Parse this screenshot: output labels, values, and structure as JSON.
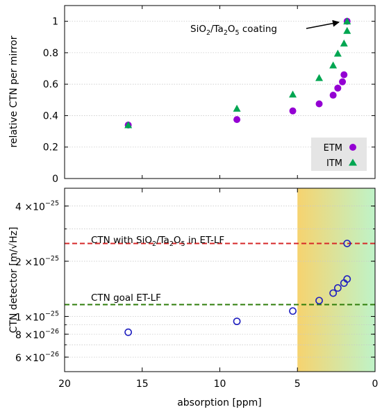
{
  "chart_data": [
    {
      "type": "scatter",
      "ylabel": "relative CTN per mirror",
      "xlim": [
        20,
        0
      ],
      "ylim": [
        0,
        1.1
      ],
      "y_ticks": [
        "0",
        "0.2",
        "0.4",
        "0.6",
        "0.8",
        "1"
      ],
      "y_tick_values": [
        0,
        0.2,
        0.4,
        0.6,
        0.8,
        1
      ],
      "grid": true,
      "legend_position": "bottom-right",
      "series": [
        {
          "name": "ETM",
          "color": "#9400d3",
          "marker": "circle",
          "x": [
            15.9,
            8.9,
            5.3,
            3.6,
            2.7,
            2.4,
            2.1,
            2.0,
            1.8
          ],
          "y": [
            0.34,
            0.375,
            0.43,
            0.475,
            0.53,
            0.575,
            0.615,
            0.66,
            1.0
          ]
        },
        {
          "name": "ITM",
          "color": "#00a651",
          "marker": "triangle",
          "x": [
            15.9,
            8.9,
            5.3,
            3.6,
            2.7,
            2.4,
            2.0,
            1.8,
            1.8
          ],
          "y": [
            0.34,
            0.445,
            0.535,
            0.64,
            0.72,
            0.795,
            0.86,
            0.94,
            1.0
          ]
        }
      ],
      "annotation": {
        "text_main": "SiO",
        "sub1": "2",
        "text_mid": "/Ta",
        "sub2": "2",
        "text_o": "O",
        "sub3": "5",
        "text_end": " coating"
      }
    },
    {
      "type": "scatter",
      "xlabel": "absorption [ppm]",
      "ylabel": "CTN detector [m/√Hz]",
      "xlim": [
        20,
        0
      ],
      "ylim": [
        5e-26,
        5e-25
      ],
      "y_scale": "log",
      "x_ticks": [
        "20",
        "15",
        "10",
        "5",
        "0"
      ],
      "x_tick_values": [
        20,
        15,
        10,
        5,
        0
      ],
      "y_tick_labels": [
        {
          "value": 6e-26,
          "mantissa": "6",
          "exp": "−26"
        },
        {
          "value": 8e-26,
          "mantissa": "8",
          "exp": "−26"
        },
        {
          "value": 1e-25,
          "mantissa": "1",
          "exp": "−25"
        },
        {
          "value": 2e-25,
          "mantissa": "2",
          "exp": "−25"
        },
        {
          "value": 4e-25,
          "mantissa": "4",
          "exp": "−25"
        }
      ],
      "times_sign": "×10",
      "grid": true,
      "highlight_region": {
        "x_from": 5,
        "x_to": 0,
        "colors": [
          "#f6d36f",
          "#bff3c8"
        ]
      },
      "series": [
        {
          "name": "",
          "color": "#1f1fbf",
          "marker": "open-circle",
          "x": [
            15.9,
            8.9,
            5.3,
            3.6,
            2.7,
            2.4,
            2.0,
            1.8,
            1.8
          ],
          "y": [
            8.2e-26,
            9.4e-26,
            1.07e-25,
            1.22e-25,
            1.34e-25,
            1.43e-25,
            1.52e-25,
            1.6e-25,
            2.5e-25
          ]
        }
      ],
      "reference_lines": [
        {
          "y": 2.5e-25,
          "color": "#d62728",
          "label_main": "CTN with SiO",
          "sub1": "2",
          "mid": "/Ta",
          "sub2": "2",
          "o": "O",
          "sub3": "5",
          "label_end": " in ET-LF"
        },
        {
          "y": 1.16e-25,
          "color": "#2e7d0a",
          "label": "CTN goal ET-LF"
        }
      ]
    }
  ]
}
